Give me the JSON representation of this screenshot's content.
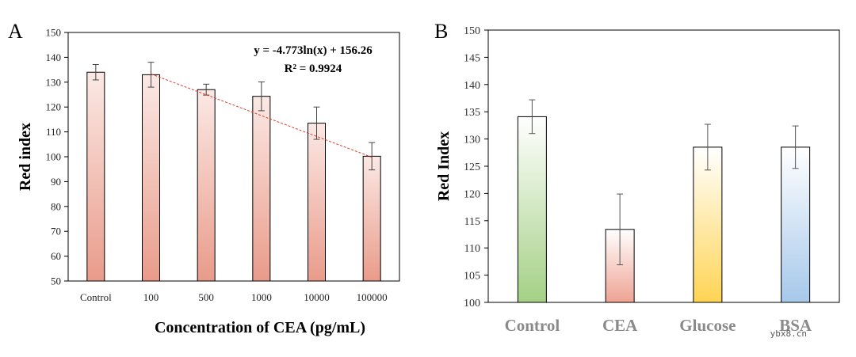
{
  "chart_data": [
    {
      "panel_label": "A",
      "type": "bar",
      "ylabel": "Red index",
      "xlabel": "Concentration of CEA (pg/mL)",
      "ylim": [
        50,
        150
      ],
      "yticks": [
        50,
        60,
        70,
        80,
        90,
        100,
        110,
        120,
        130,
        140,
        150
      ],
      "categories": [
        "Control",
        "100",
        "500",
        "1000",
        "10000",
        "100000"
      ],
      "values": [
        134,
        133,
        127,
        124.3,
        113.5,
        100.2
      ],
      "errors": [
        3.1,
        5.0,
        2.2,
        5.8,
        6.5,
        5.5
      ],
      "colors": {
        "top": "#fbe9e5",
        "bottom": "#e99b8a"
      },
      "trendline": {
        "type": "log",
        "from_category": 1,
        "to_category": 5,
        "y_start": 133.3,
        "y_end": 99.8,
        "color": "#e03a30",
        "equation": "y = -4.773ln(x) + 156.26",
        "r2": "R² = 0.9924"
      },
      "grid": false
    },
    {
      "panel_label": "B",
      "type": "bar",
      "ylabel": "Red Index",
      "ylim": [
        100,
        150
      ],
      "yticks": [
        100,
        105,
        110,
        115,
        120,
        125,
        130,
        135,
        140,
        145,
        150
      ],
      "categories": [
        "Control",
        "CEA",
        "Glucose",
        "BSA"
      ],
      "values": [
        134.1,
        113.4,
        128.5,
        128.5
      ],
      "errors": [
        3.1,
        6.5,
        4.2,
        3.9
      ],
      "gradients": [
        {
          "top": "#ffffff",
          "bottom": "#a4d085"
        },
        {
          "top": "#ffffff",
          "bottom": "#eea393"
        },
        {
          "top": "#ffffff",
          "bottom": "#ffd454"
        },
        {
          "top": "#ffffff",
          "bottom": "#a6c8ea"
        }
      ],
      "grid": false
    }
  ],
  "watermark": "ybx8.cn"
}
